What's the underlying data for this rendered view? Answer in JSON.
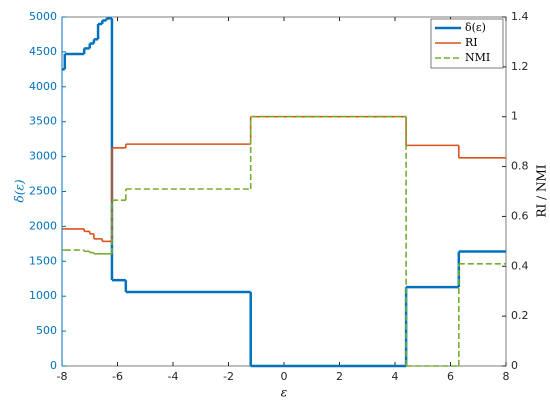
{
  "chart_data": {
    "type": "line",
    "step": "post",
    "x_label": "ε",
    "y_label": "δ(ε)",
    "y2_label": "RI / NMI",
    "x": [
      -8,
      -7.9,
      -7.2,
      -7.0,
      -6.85,
      -6.7,
      -6.55,
      -6.4,
      -6.2,
      -5.7,
      -1.2,
      4.4,
      6.3
    ],
    "series": [
      {
        "name": "δ(ε)",
        "color": "#0072bd",
        "values": [
          4250,
          4470,
          4550,
          4620,
          4680,
          4900,
          4950,
          4980,
          1230,
          1060,
          0,
          1130,
          1640
        ]
      },
      {
        "name": "RI",
        "color": "#d95319",
        "axis": "y2",
        "values": [
          0.55,
          0.55,
          0.54,
          0.53,
          0.51,
          0.51,
          0.5,
          0.5,
          0.875,
          0.89,
          1.0,
          0.885,
          0.835
        ]
      },
      {
        "name": "NMI",
        "color": "#77ac30",
        "axis": "y2",
        "dash": "6,3",
        "values": [
          0.465,
          0.465,
          0.46,
          0.455,
          0.45,
          0.45,
          0.45,
          0.45,
          0.665,
          0.71,
          1.0,
          0,
          0.41
        ]
      }
    ],
    "xlim": [
      -8,
      8
    ],
    "xticks": [
      -8,
      -6,
      -4,
      -2,
      0,
      2,
      4,
      6,
      8
    ],
    "ylim": [
      0,
      5000
    ],
    "yticks": [
      0,
      500,
      1000,
      1500,
      2000,
      2500,
      3000,
      3500,
      4000,
      4500,
      5000
    ],
    "y2lim": [
      0,
      1.4
    ],
    "y2ticks": [
      0,
      0.2,
      0.4,
      0.6,
      0.8,
      1,
      1.2,
      1.4
    ],
    "y_axis_color": "#0072bd",
    "legend": "upper right",
    "grid": false
  }
}
